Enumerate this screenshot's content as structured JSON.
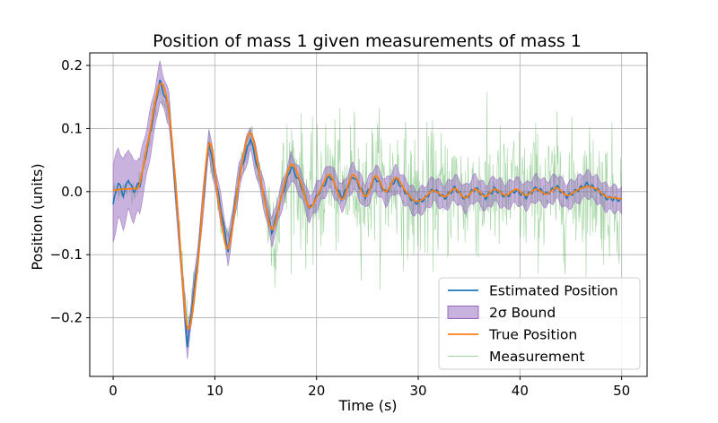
{
  "chart_data": {
    "type": "line",
    "title": "Position of mass 1 given measurements of mass 1",
    "xlabel": "Time (s)",
    "ylabel": "Position (units)",
    "xlim": [
      -2.3,
      52.5
    ],
    "ylim": [
      -0.293,
      0.22
    ],
    "xticks": [
      0,
      10,
      20,
      30,
      40,
      50
    ],
    "xtick_labels": [
      "0",
      "10",
      "20",
      "30",
      "40",
      "50"
    ],
    "yticks": [
      -0.2,
      -0.1,
      0.0,
      0.1,
      0.2
    ],
    "ytick_labels": [
      "−0.2",
      "−0.1",
      "0.0",
      "0.1",
      "0.2"
    ],
    "grid": true,
    "legend_position": "lower-right",
    "legend": [
      {
        "label": "Estimated Position",
        "kind": "line",
        "color": "#1f77b4"
      },
      {
        "label": "2σ Bound",
        "kind": "patch",
        "color": "#9467bd"
      },
      {
        "label": "True Position",
        "kind": "line",
        "color": "#ff7f0e"
      },
      {
        "label": "Measurement",
        "kind": "thin-line",
        "color": "#2ca02c"
      }
    ],
    "series": [
      {
        "name": "True Position",
        "color": "#ff7f0e",
        "x": [
          0,
          1,
          2,
          2.6,
          3.5,
          4.6,
          5.5,
          6.3,
          7.3,
          8.3,
          9.4,
          10.4,
          11.3,
          12.4,
          13.5,
          14.6,
          15.6,
          16.5,
          17.5,
          18.5,
          19.3,
          20.3,
          21.3,
          22.5,
          23.6,
          24.8,
          25.8,
          26.8,
          27.8,
          28.7,
          29.7,
          30.6,
          31.5,
          32.6,
          33.6,
          34.6,
          35.6,
          36.6,
          37.5,
          38.6,
          39.6,
          40.6,
          41.6,
          42.6,
          43.6,
          44.6,
          45.6,
          46.6,
          47.5,
          48.5,
          49.5,
          50
        ],
        "y": [
          0.002,
          0.004,
          0.005,
          0.012,
          0.085,
          0.17,
          0.125,
          -0.02,
          -0.215,
          -0.12,
          0.075,
          -0.02,
          -0.09,
          0.02,
          0.093,
          0.01,
          -0.06,
          -0.01,
          0.043,
          0.012,
          -0.025,
          0.0,
          0.027,
          -0.012,
          0.027,
          -0.008,
          0.025,
          0.0,
          0.022,
          0.002,
          -0.015,
          -0.01,
          0.002,
          -0.008,
          0.005,
          -0.01,
          0.004,
          -0.008,
          0.004,
          -0.006,
          0.004,
          -0.006,
          0.004,
          -0.004,
          0.006,
          -0.006,
          0.002,
          0.008,
          0.004,
          -0.008,
          -0.01,
          -0.012
        ]
      },
      {
        "name": "Estimated Position",
        "color": "#1f77b4",
        "x": [
          0,
          0.5,
          1,
          1.5,
          2,
          2.5,
          2.6,
          3.5,
          4.6,
          5.5,
          6.3,
          7.3,
          8.3,
          9.4,
          10.4,
          11.3,
          12.4,
          13.5,
          14.6,
          15.6,
          16.5,
          17.5,
          18.5,
          19.3,
          20.3,
          21.3,
          22.5,
          23.6,
          24.8,
          25.8,
          26.8,
          27.8,
          28.7,
          29.7,
          30.6,
          31.5,
          32.6,
          33.6,
          34.6,
          35.6,
          36.6,
          37.5,
          38.6,
          39.6,
          40.6,
          41.6,
          42.6,
          43.6,
          44.6,
          45.6,
          46.6,
          47.5,
          48.5,
          49.5,
          50
        ],
        "y": [
          -0.02,
          0.015,
          -0.005,
          0.02,
          0.0,
          0.012,
          0.008,
          0.08,
          0.175,
          0.13,
          -0.03,
          -0.245,
          -0.11,
          0.08,
          -0.01,
          -0.095,
          0.025,
          0.085,
          0.01,
          -0.065,
          -0.012,
          0.04,
          0.01,
          -0.028,
          0.0,
          0.025,
          -0.01,
          0.025,
          -0.008,
          0.022,
          -0.002,
          0.02,
          0.0,
          -0.018,
          -0.012,
          0.004,
          -0.01,
          0.006,
          -0.012,
          0.006,
          -0.01,
          0.004,
          -0.008,
          0.002,
          -0.008,
          0.006,
          -0.004,
          0.008,
          -0.008,
          0.002,
          0.012,
          0.004,
          -0.01,
          -0.012,
          -0.014
        ]
      }
    ],
    "band": {
      "name": "2σ Bound",
      "color": "#9467bd",
      "halfwidth_start": 0.06,
      "halfwidth_end": 0.02,
      "transition_end_x": 6
    },
    "measurement_noise_std": {
      "early": 0.008,
      "late": 0.05,
      "transition_x": 15
    }
  }
}
